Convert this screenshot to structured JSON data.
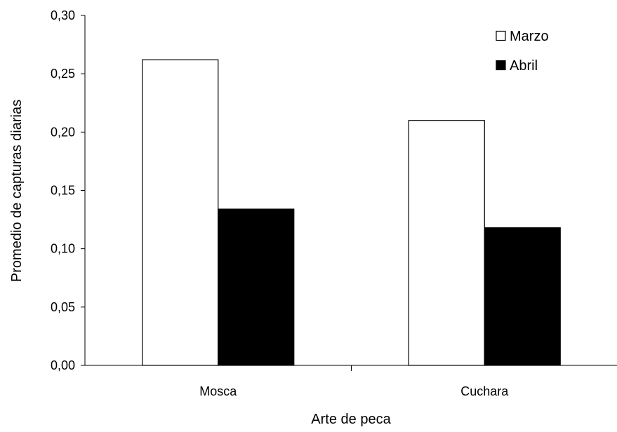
{
  "chart_data": {
    "type": "bar",
    "title": "",
    "xlabel": "Arte de peca",
    "ylabel": "Promedio de capturas diarias",
    "categories": [
      "Mosca",
      "Cuchara"
    ],
    "series": [
      {
        "name": "Marzo",
        "values": [
          0.262,
          0.21
        ],
        "color": "#ffffff"
      },
      {
        "name": "Abril",
        "values": [
          0.134,
          0.118
        ],
        "color": "#000000"
      }
    ],
    "ylim": [
      0,
      0.3
    ],
    "yticks": [
      "0,00",
      "0,05",
      "0,10",
      "0,15",
      "0,20",
      "0,25",
      "0,30"
    ],
    "grid": false,
    "legend": "top-right"
  }
}
